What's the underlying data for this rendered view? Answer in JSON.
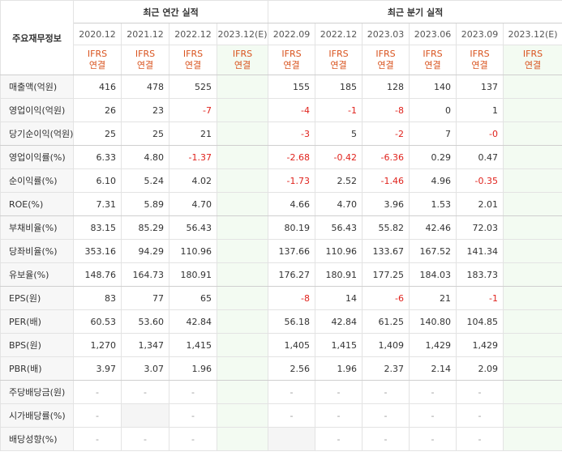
{
  "header": {
    "corner_label": "주요재무정보",
    "annual_title": "최근 연간 실적",
    "quarter_title": "최근 분기 실적",
    "annual_periods": [
      "2020.12",
      "2021.12",
      "2022.12",
      "2023.12(E)"
    ],
    "quarter_periods": [
      "2022.09",
      "2022.12",
      "2023.03",
      "2023.06",
      "2023.09",
      "2023.12(E)"
    ],
    "basis_line1": "IFRS",
    "basis_line2": "연결"
  },
  "rows": [
    {
      "label": "매출액(억원)",
      "annual": [
        "416",
        "478",
        "525",
        ""
      ],
      "quarter": [
        "155",
        "185",
        "128",
        "140",
        "137",
        ""
      ]
    },
    {
      "label": "영업이익(억원)",
      "annual": [
        "26",
        "23",
        "-7",
        ""
      ],
      "quarter": [
        "-4",
        "-1",
        "-8",
        "0",
        "1",
        ""
      ]
    },
    {
      "label": "당기순이익(억원)",
      "annual": [
        "25",
        "25",
        "21",
        ""
      ],
      "quarter": [
        "-3",
        "5",
        "-2",
        "7",
        "-0",
        ""
      ]
    },
    {
      "label": "영업이익률(%)",
      "annual": [
        "6.33",
        "4.80",
        "-1.37",
        ""
      ],
      "quarter": [
        "-2.68",
        "-0.42",
        "-6.36",
        "0.29",
        "0.47",
        ""
      ]
    },
    {
      "label": "순이익률(%)",
      "annual": [
        "6.10",
        "5.24",
        "4.02",
        ""
      ],
      "quarter": [
        "-1.73",
        "2.52",
        "-1.46",
        "4.96",
        "-0.35",
        ""
      ]
    },
    {
      "label": "ROE(%)",
      "annual": [
        "7.31",
        "5.89",
        "4.70",
        ""
      ],
      "quarter": [
        "4.66",
        "4.70",
        "3.96",
        "1.53",
        "2.01",
        ""
      ]
    },
    {
      "label": "부채비율(%)",
      "annual": [
        "83.15",
        "85.29",
        "56.43",
        ""
      ],
      "quarter": [
        "80.19",
        "56.43",
        "55.82",
        "42.46",
        "72.03",
        ""
      ]
    },
    {
      "label": "당좌비율(%)",
      "annual": [
        "353.16",
        "94.29",
        "110.96",
        ""
      ],
      "quarter": [
        "137.66",
        "110.96",
        "133.67",
        "167.52",
        "141.34",
        ""
      ]
    },
    {
      "label": "유보율(%)",
      "annual": [
        "148.76",
        "164.73",
        "180.91",
        ""
      ],
      "quarter": [
        "176.27",
        "180.91",
        "177.25",
        "184.03",
        "183.73",
        ""
      ]
    },
    {
      "label": "EPS(원)",
      "annual": [
        "83",
        "77",
        "65",
        ""
      ],
      "quarter": [
        "-8",
        "14",
        "-6",
        "21",
        "-1",
        ""
      ]
    },
    {
      "label": "PER(배)",
      "annual": [
        "60.53",
        "53.60",
        "42.84",
        ""
      ],
      "quarter": [
        "56.18",
        "42.84",
        "61.25",
        "140.80",
        "104.85",
        ""
      ]
    },
    {
      "label": "BPS(원)",
      "annual": [
        "1,270",
        "1,347",
        "1,415",
        ""
      ],
      "quarter": [
        "1,405",
        "1,415",
        "1,409",
        "1,429",
        "1,429",
        ""
      ]
    },
    {
      "label": "PBR(배)",
      "annual": [
        "3.97",
        "3.07",
        "1.96",
        ""
      ],
      "quarter": [
        "2.56",
        "1.96",
        "2.37",
        "2.14",
        "2.09",
        ""
      ]
    },
    {
      "label": "주당배당금(원)",
      "annual": [
        "-",
        "-",
        "-",
        ""
      ],
      "quarter": [
        "-",
        "-",
        "-",
        "-",
        "-",
        ""
      ]
    },
    {
      "label": "시가배당률(%)",
      "annual": [
        "-",
        "",
        "-",
        ""
      ],
      "quarter": [
        "-",
        "-",
        "-",
        "-",
        "-",
        ""
      ]
    },
    {
      "label": "배당성향(%)",
      "annual": [
        "-",
        "-",
        "-",
        ""
      ],
      "quarter": [
        "",
        "-",
        "-",
        "-",
        "-",
        ""
      ]
    }
  ],
  "colors": {
    "negative": "#e0231d",
    "basis": "#d9531e",
    "estimate_bg": "#f3fbf2",
    "empty_bg": "#f5f5f5"
  }
}
